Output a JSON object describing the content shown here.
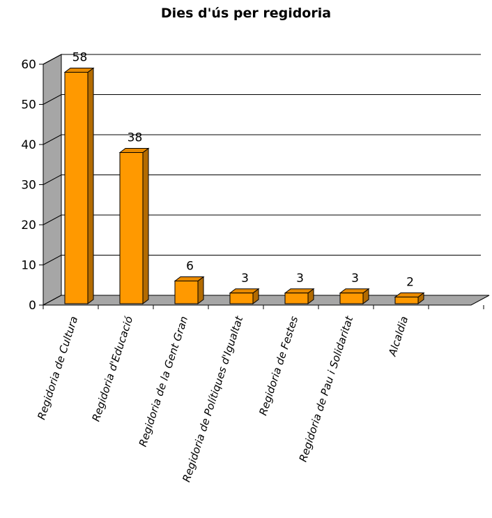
{
  "chart_data": {
    "type": "bar",
    "title": "Dies d'ús per regidoria",
    "categories": [
      "Regidoria de Cultura",
      "Regidoria d'Educació",
      "Regidoria de la Gent Gran",
      "Regidoria de Polítiques d'Igualtat",
      "Regidoria de Festes",
      "Regidoria de Pau i Solidaritat",
      "Alcaldia"
    ],
    "values": [
      58,
      38,
      6,
      3,
      3,
      3,
      2
    ],
    "data_labels": [
      "58",
      "38",
      "6",
      "3",
      "3",
      "3",
      "2"
    ],
    "y_ticks": [
      "0",
      "10",
      "20",
      "30",
      "40",
      "50",
      "60"
    ],
    "ylim": [
      0,
      60
    ],
    "xlabel": "",
    "ylabel": "",
    "grid": true,
    "legend": "none",
    "style": "3d-column"
  },
  "colors": {
    "bar_front": "#ff9900",
    "bar_top": "#e88a00",
    "bar_side": "#b36b00",
    "bar_outline": "#000000",
    "wall": "#ffffff",
    "wall_side": "#a6a6a6",
    "floor": "#a6a6a6",
    "grid": "#000000"
  }
}
